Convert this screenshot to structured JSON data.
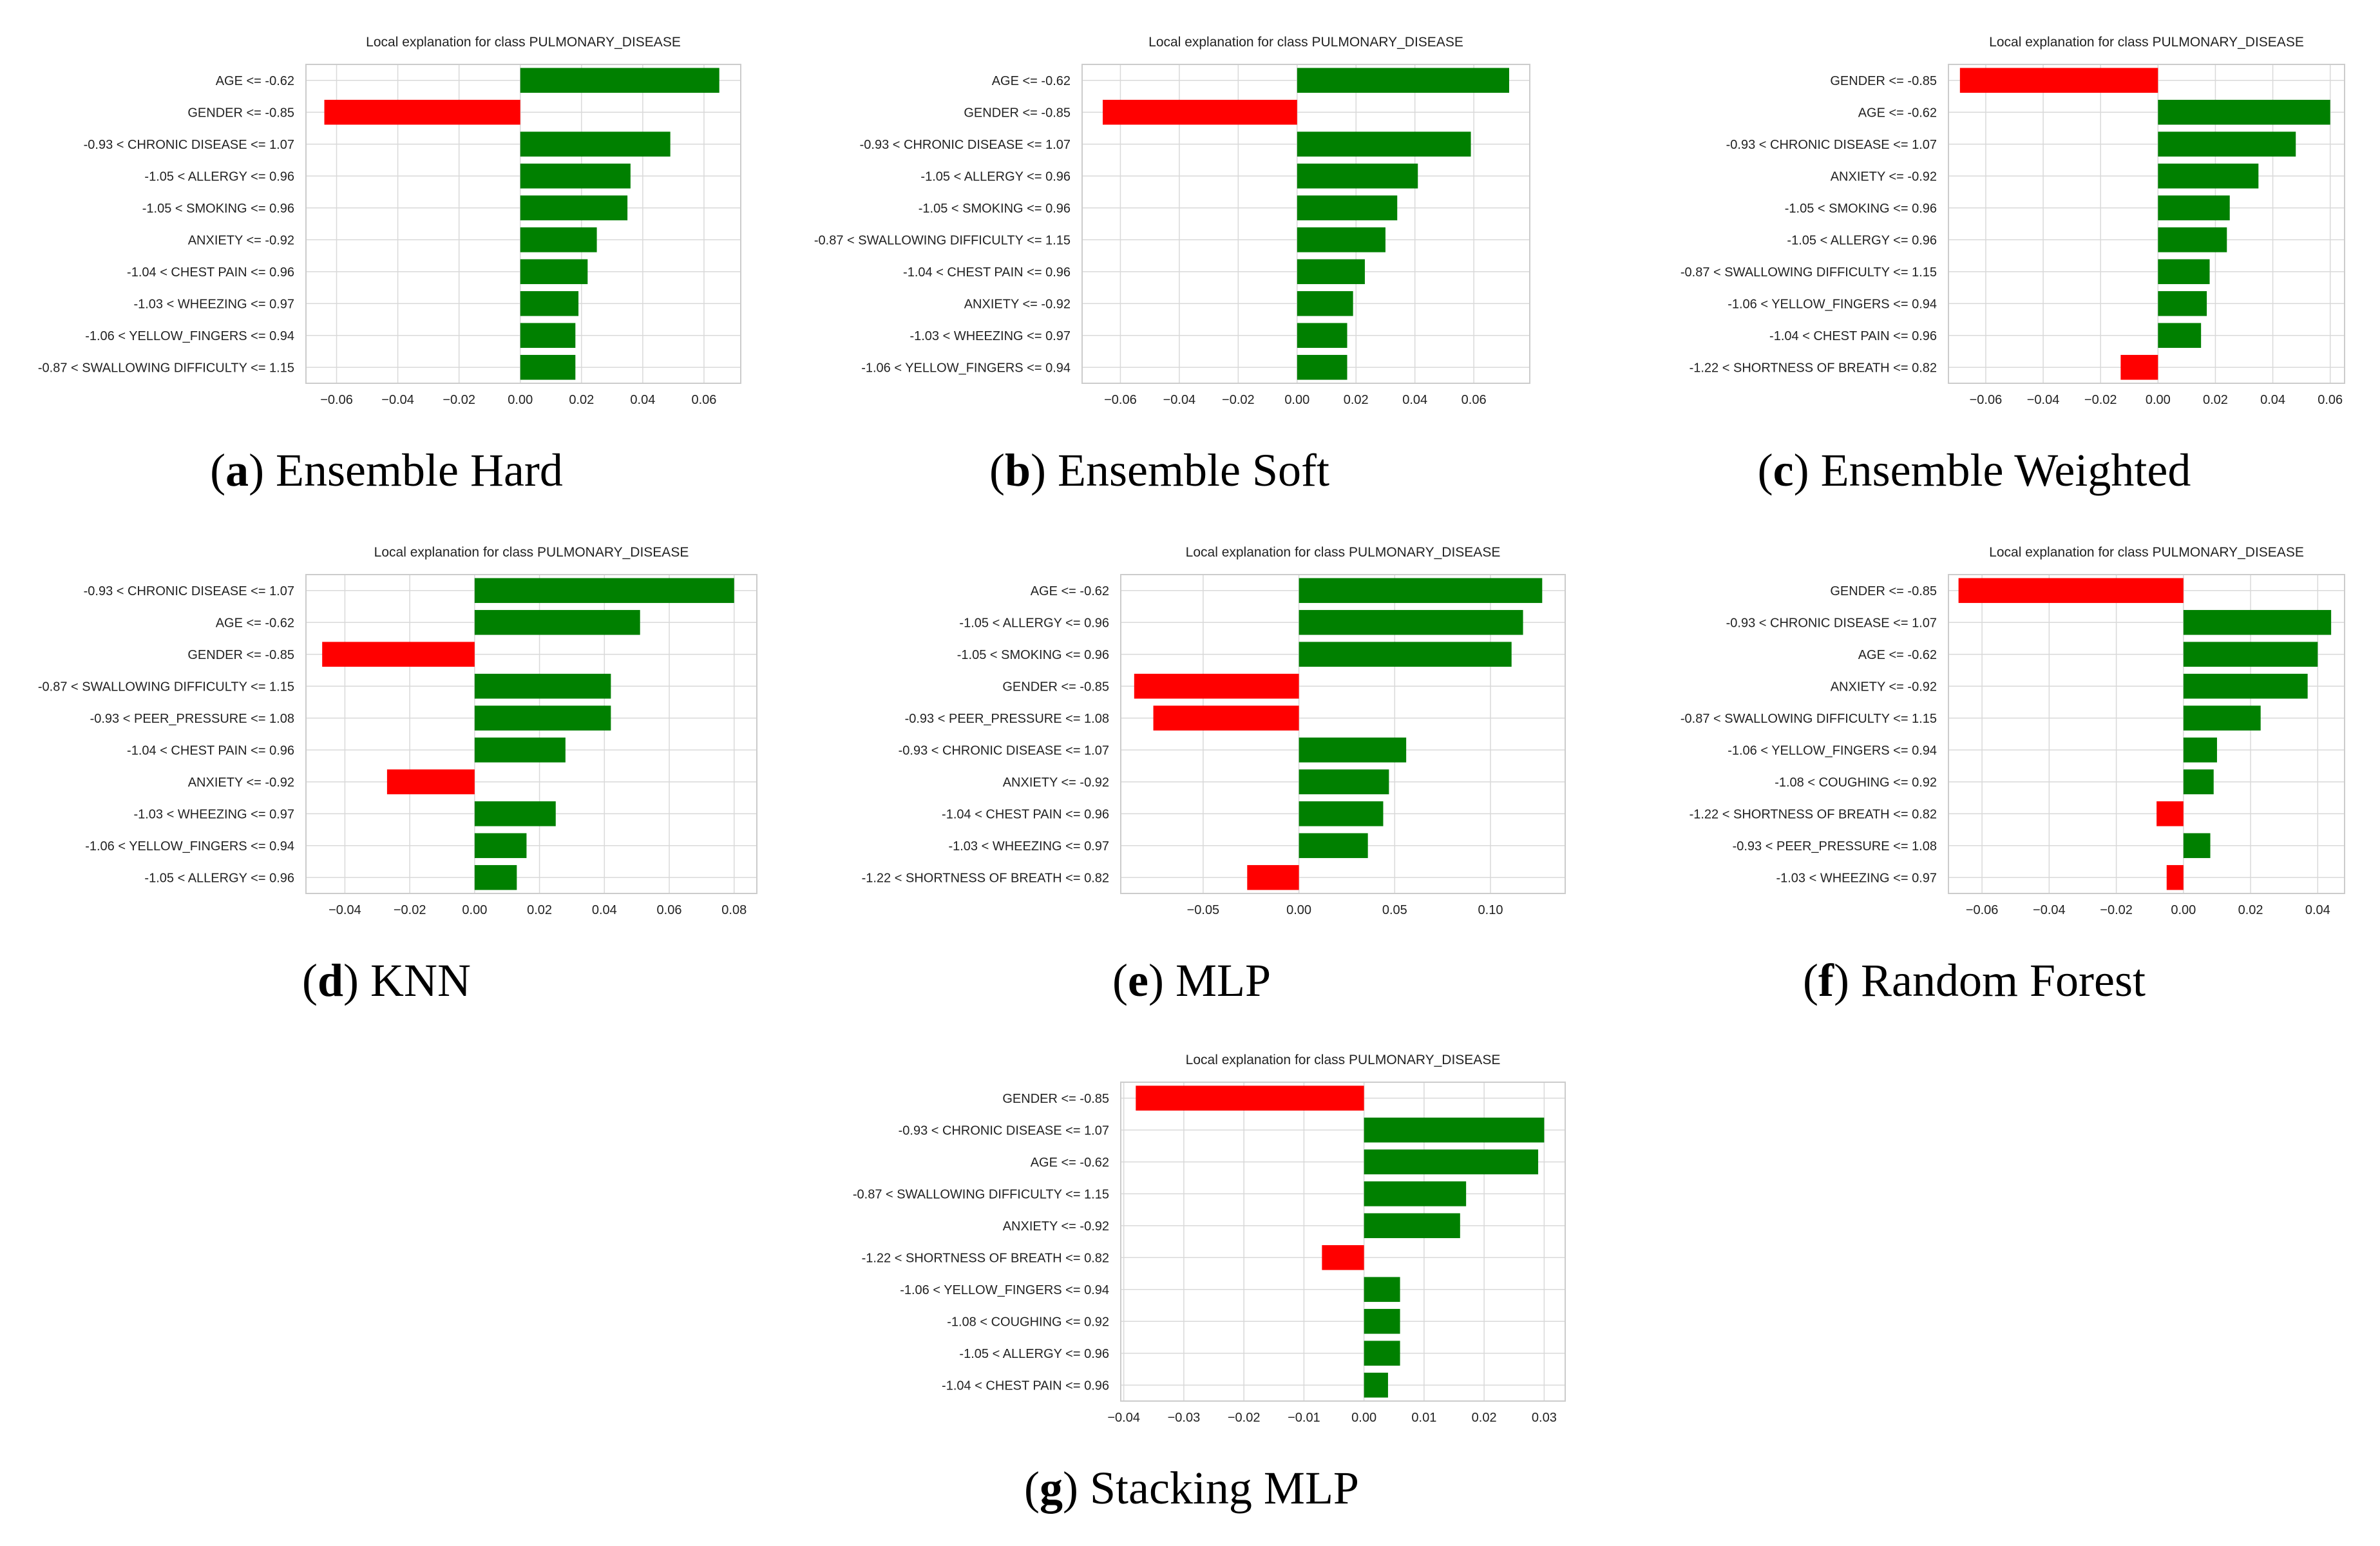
{
  "figure": {
    "panels": [
      {
        "letter": "a",
        "caption": "Ensemble Hard"
      },
      {
        "letter": "b",
        "caption": "Ensemble Soft"
      },
      {
        "letter": "c",
        "caption": "Ensemble Weighted"
      },
      {
        "letter": "d",
        "caption": "KNN"
      },
      {
        "letter": "e",
        "caption": "MLP"
      },
      {
        "letter": "f",
        "caption": "Random Forest"
      },
      {
        "letter": "g",
        "caption": "Stacking MLP"
      }
    ]
  },
  "colors": {
    "positive": "#008000",
    "negative": "#ff0000",
    "grid": "#d9d9d9",
    "frame": "#cccccc"
  },
  "chart_data": [
    {
      "type": "bar",
      "orientation": "horizontal",
      "title": "Local explanation for class PULMONARY_DISEASE",
      "categories": [
        "AGE <= -0.62",
        "GENDER <= -0.85",
        "-0.93 < CHRONIC DISEASE <= 1.07",
        "-1.05 < ALLERGY  <= 0.96",
        "-1.05 < SMOKING <= 0.96",
        "ANXIETY <= -0.92",
        "-1.04 < CHEST PAIN <= 0.96",
        "-1.03 < WHEEZING <= 0.97",
        "-1.06 < YELLOW_FINGERS <= 0.94",
        "-0.87 < SWALLOWING DIFFICULTY <= 1.15"
      ],
      "values": [
        0.065,
        -0.064,
        0.049,
        0.036,
        0.035,
        0.025,
        0.022,
        0.019,
        0.018,
        0.018
      ],
      "xlim": [
        -0.07,
        0.072
      ],
      "xticks": [
        -0.06,
        -0.04,
        -0.02,
        0.0,
        0.02,
        0.04,
        0.06
      ],
      "xtick_labels": [
        "−0.06",
        "−0.04",
        "−0.02",
        "0.00",
        "0.02",
        "0.04",
        "0.06"
      ],
      "grid": true
    },
    {
      "type": "bar",
      "orientation": "horizontal",
      "title": "Local explanation for class PULMONARY_DISEASE",
      "categories": [
        "AGE <= -0.62",
        "GENDER <= -0.85",
        "-0.93 < CHRONIC DISEASE <= 1.07",
        "-1.05 < ALLERGY  <= 0.96",
        "-1.05 < SMOKING <= 0.96",
        "-0.87 < SWALLOWING DIFFICULTY <= 1.15",
        "-1.04 < CHEST PAIN <= 0.96",
        "ANXIETY <= -0.92",
        "-1.03 < WHEEZING <= 0.97",
        "-1.06 < YELLOW_FINGERS <= 0.94"
      ],
      "values": [
        0.072,
        -0.066,
        0.059,
        0.041,
        0.034,
        0.03,
        0.023,
        0.019,
        0.017,
        0.017
      ],
      "xlim": [
        -0.073,
        0.079
      ],
      "xticks": [
        -0.06,
        -0.04,
        -0.02,
        0.0,
        0.02,
        0.04,
        0.06
      ],
      "xtick_labels": [
        "−0.06",
        "−0.04",
        "−0.02",
        "0.00",
        "0.02",
        "0.04",
        "0.06"
      ],
      "grid": true
    },
    {
      "type": "bar",
      "orientation": "horizontal",
      "title": "Local explanation for class PULMONARY_DISEASE",
      "categories": [
        "GENDER <= -0.85",
        "AGE <= -0.62",
        "-0.93 < CHRONIC DISEASE <= 1.07",
        "ANXIETY <= -0.92",
        "-1.05 < SMOKING <= 0.96",
        "-1.05 < ALLERGY  <= 0.96",
        "-0.87 < SWALLOWING DIFFICULTY <= 1.15",
        "-1.06 < YELLOW_FINGERS <= 0.94",
        "-1.04 < CHEST PAIN <= 0.96",
        "-1.22 < SHORTNESS OF BREATH <= 0.82"
      ],
      "values": [
        -0.069,
        0.06,
        0.048,
        0.035,
        0.025,
        0.024,
        0.018,
        0.017,
        0.015,
        -0.013
      ],
      "xlim": [
        -0.073,
        0.065
      ],
      "xticks": [
        -0.06,
        -0.04,
        -0.02,
        0.0,
        0.02,
        0.04,
        0.06
      ],
      "xtick_labels": [
        "−0.06",
        "−0.04",
        "−0.02",
        "0.00",
        "0.02",
        "0.04",
        "0.06"
      ],
      "grid": true
    },
    {
      "type": "bar",
      "orientation": "horizontal",
      "title": "Local explanation for class PULMONARY_DISEASE",
      "categories": [
        "-0.93 < CHRONIC DISEASE <= 1.07",
        "AGE <= -0.62",
        "GENDER <= -0.85",
        "-0.87 < SWALLOWING DIFFICULTY <= 1.15",
        "-0.93 < PEER_PRESSURE <= 1.08",
        "-1.04 < CHEST PAIN <= 0.96",
        "ANXIETY <= -0.92",
        "-1.03 < WHEEZING <= 0.97",
        "-1.06 < YELLOW_FINGERS <= 0.94",
        "-1.05 < ALLERGY  <= 0.96"
      ],
      "values": [
        0.08,
        0.051,
        -0.047,
        0.042,
        0.042,
        0.028,
        -0.027,
        0.025,
        0.016,
        0.013
      ],
      "xlim": [
        -0.052,
        0.087
      ],
      "xticks": [
        -0.04,
        -0.02,
        0.0,
        0.02,
        0.04,
        0.06,
        0.08
      ],
      "xtick_labels": [
        "−0.04",
        "−0.02",
        "0.00",
        "0.02",
        "0.04",
        "0.06",
        "0.08"
      ],
      "grid": true
    },
    {
      "type": "bar",
      "orientation": "horizontal",
      "title": "Local explanation for class PULMONARY_DISEASE",
      "categories": [
        "AGE <= -0.62",
        "-1.05 < ALLERGY  <= 0.96",
        "-1.05 < SMOKING <= 0.96",
        "GENDER <= -0.85",
        "-0.93 < PEER_PRESSURE <= 1.08",
        "-0.93 < CHRONIC DISEASE <= 1.07",
        "ANXIETY <= -0.92",
        "-1.04 < CHEST PAIN <= 0.96",
        "-1.03 < WHEEZING <= 0.97",
        "-1.22 < SHORTNESS OF BREATH <= 0.82"
      ],
      "values": [
        0.127,
        0.117,
        0.111,
        -0.086,
        -0.076,
        0.056,
        0.047,
        0.044,
        0.036,
        -0.027
      ],
      "xlim": [
        -0.093,
        0.139
      ],
      "xticks": [
        -0.05,
        0.0,
        0.05,
        0.1
      ],
      "xtick_labels": [
        "−0.05",
        "0.00",
        "0.05",
        "0.10"
      ],
      "grid": true
    },
    {
      "type": "bar",
      "orientation": "horizontal",
      "title": "Local explanation for class PULMONARY_DISEASE",
      "categories": [
        "GENDER <= -0.85",
        "-0.93 < CHRONIC DISEASE <= 1.07",
        "AGE <= -0.62",
        "ANXIETY <= -0.92",
        "-0.87 < SWALLOWING DIFFICULTY <= 1.15",
        "-1.06 < YELLOW_FINGERS <= 0.94",
        "-1.08 < COUGHING <= 0.92",
        "-1.22 < SHORTNESS OF BREATH <= 0.82",
        "-0.93 < PEER_PRESSURE <= 1.08",
        "-1.03 < WHEEZING <= 0.97"
      ],
      "values": [
        -0.067,
        0.044,
        0.04,
        0.037,
        0.023,
        0.01,
        0.009,
        -0.008,
        0.008,
        -0.005
      ],
      "xlim": [
        -0.07,
        0.048
      ],
      "xticks": [
        -0.06,
        -0.04,
        -0.02,
        0.0,
        0.02,
        0.04
      ],
      "xtick_labels": [
        "−0.06",
        "−0.04",
        "−0.02",
        "0.00",
        "0.02",
        "0.04"
      ],
      "grid": true
    },
    {
      "type": "bar",
      "orientation": "horizontal",
      "title": "Local explanation for class PULMONARY_DISEASE",
      "categories": [
        "GENDER <= -0.85",
        "-0.93 < CHRONIC DISEASE <= 1.07",
        "AGE <= -0.62",
        "-0.87 < SWALLOWING DIFFICULTY <= 1.15",
        "ANXIETY <= -0.92",
        "-1.22 < SHORTNESS OF BREATH <= 0.82",
        "-1.06 < YELLOW_FINGERS <= 0.94",
        "-1.08 < COUGHING <= 0.92",
        "-1.05 < ALLERGY  <= 0.96",
        "-1.04 < CHEST PAIN <= 0.96"
      ],
      "values": [
        -0.038,
        0.03,
        0.029,
        0.017,
        0.016,
        -0.007,
        0.006,
        0.006,
        0.006,
        0.004
      ],
      "xlim": [
        -0.0405,
        0.0335
      ],
      "xticks": [
        -0.04,
        -0.03,
        -0.02,
        -0.01,
        0.0,
        0.01,
        0.02,
        0.03
      ],
      "xtick_labels": [
        "−0.04",
        "−0.03",
        "−0.02",
        "−0.01",
        "0.00",
        "0.01",
        "0.02",
        "0.03"
      ],
      "grid": true
    }
  ]
}
